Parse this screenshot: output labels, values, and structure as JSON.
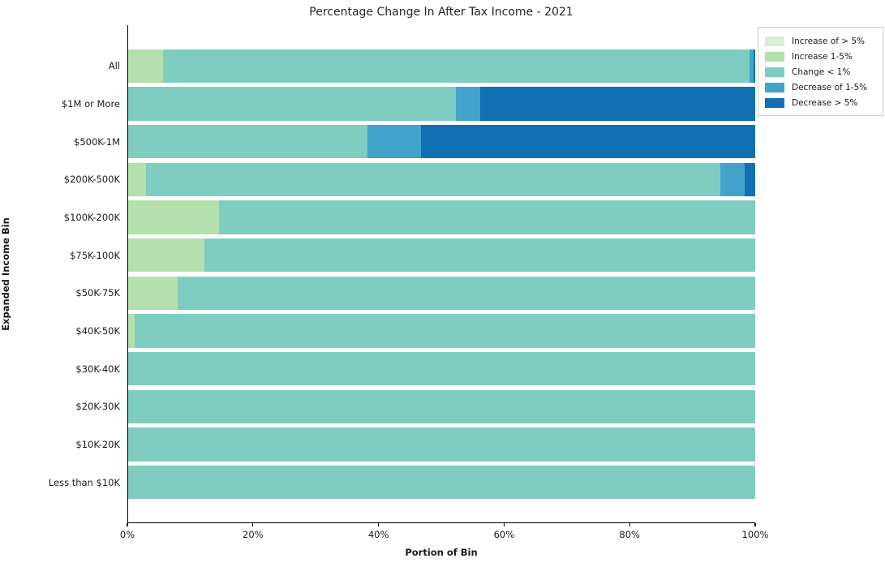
{
  "chart_data": {
    "type": "bar",
    "orientation": "horizontal",
    "stacked": true,
    "title": "Percentage Change In After Tax Income - 2021",
    "xlabel": "Portion of Bin",
    "ylabel": "Expanded Income Bin",
    "xlim": [
      0,
      100
    ],
    "x_ticks": [
      "0%",
      "20%",
      "40%",
      "60%",
      "80%",
      "100%"
    ],
    "x_tick_values": [
      0,
      20,
      40,
      60,
      80,
      100
    ],
    "grid": false,
    "legend_position": "upper-right-outside",
    "categories": [
      "All",
      "$1M or More",
      "$500K-1M",
      "$200K-500K",
      "$100K-200K",
      "$75K-100K",
      "$50K-75K",
      "$40K-50K",
      "$30K-40K",
      "$20K-30K",
      "$10K-20K",
      "Less than $10K"
    ],
    "series": [
      {
        "name": "Increase of > 5%",
        "color": "#d9efd3",
        "values": [
          0,
          0,
          0,
          0,
          0,
          0,
          0,
          0,
          0,
          0,
          0,
          0
        ]
      },
      {
        "name": "Increase 1-5%",
        "color": "#b3e0ad",
        "values": [
          5.6,
          0,
          0,
          2.8,
          14.5,
          12.1,
          7.9,
          1.0,
          0,
          0,
          0,
          0
        ]
      },
      {
        "name": "Change < 1%",
        "color": "#7fcdc1",
        "values": [
          93.5,
          52.2,
          38.2,
          91.6,
          85.5,
          87.9,
          92.1,
          99.0,
          100,
          100,
          100,
          100
        ]
      },
      {
        "name": "Decrease of 1-5%",
        "color": "#42a3cb",
        "values": [
          0.6,
          4.0,
          8.5,
          3.9,
          0,
          0,
          0,
          0,
          0,
          0,
          0,
          0
        ]
      },
      {
        "name": "Decrease > 5%",
        "color": "#1070b2",
        "values": [
          0.3,
          43.8,
          53.3,
          1.7,
          0,
          0,
          0,
          0,
          0,
          0,
          0,
          0
        ]
      }
    ]
  }
}
